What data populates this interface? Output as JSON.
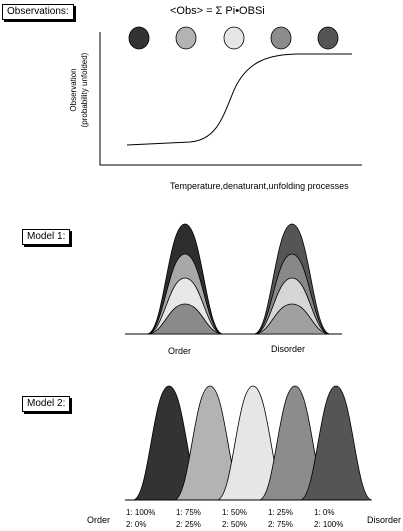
{
  "panel_observations": {
    "label": "Observations:",
    "equation": "<Obs> = Σ Pi•OBSi",
    "ylabel_line1": "Observation",
    "ylabel_line2": "(probability unfolded)",
    "xlabel": "Temperature,denaturant,unfolding processes",
    "circle_colors": [
      "#333333",
      "#b3b3b3",
      "#e6e6e6",
      "#8c8c8c",
      "#555555"
    ]
  },
  "panel_model1": {
    "label": "Model 1:",
    "left_label": "Order",
    "right_label": "Disorder"
  },
  "panel_model2": {
    "label": "Model 2:",
    "left_label": "Order",
    "right_label": "Disorder",
    "peak_colors": [
      "#333333",
      "#b3b3b3",
      "#e6e6e6",
      "#8c8c8c",
      "#555555"
    ],
    "populations": [
      {
        "line1": "1: 100%",
        "line2": "2: 0%"
      },
      {
        "line1": "1: 75%",
        "line2": "2: 25%"
      },
      {
        "line1": "1: 50%",
        "line2": "2: 50%"
      },
      {
        "line1": "1: 25%",
        "line2": "2: 75%"
      },
      {
        "line1": "1: 0%",
        "line2": "2: 100%"
      }
    ]
  }
}
